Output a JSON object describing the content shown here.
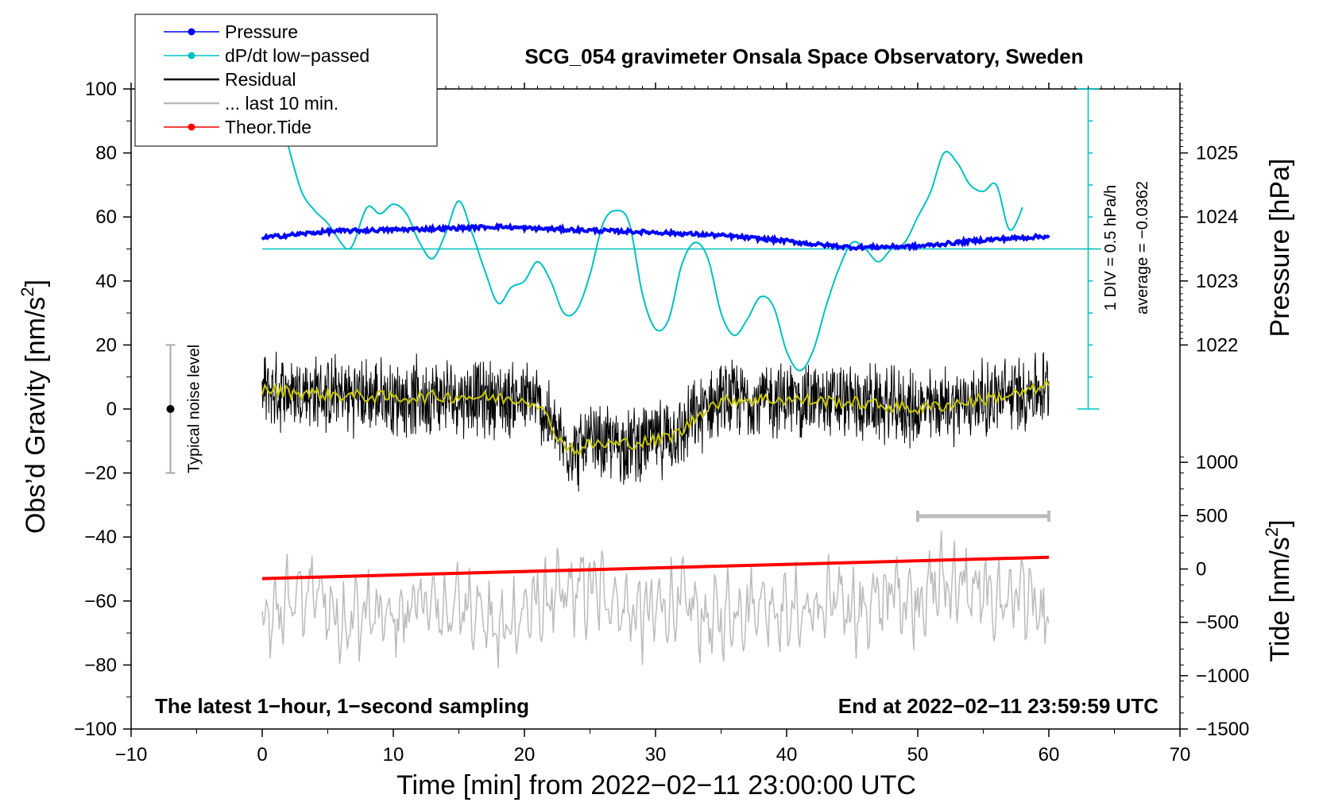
{
  "chart_data": {
    "type": "line",
    "title": "SCG_054 gravimeter Onsala Space Observatory, Sweden",
    "xlabel": "Time [min] from 2022−02−11 23:00:00 UTC",
    "xlim": [
      -10,
      70
    ],
    "xticks": [
      -10,
      0,
      10,
      20,
      30,
      40,
      50,
      60,
      70
    ],
    "xtick_labels": [
      "−10",
      "0",
      "10",
      "20",
      "30",
      "40",
      "50",
      "60",
      "70"
    ],
    "left_axis": {
      "label": "Obs’d Gravity [nm/s",
      "label_sup": "2",
      "label_end": "]",
      "ylim": [
        -100,
        100
      ],
      "ticks": [
        -100,
        -80,
        -60,
        -40,
        -20,
        0,
        20,
        40,
        60,
        80,
        100
      ],
      "tick_labels": [
        "−100",
        "−80",
        "−60",
        "−40",
        "−20",
        "0",
        "20",
        "40",
        "60",
        "80",
        "100"
      ]
    },
    "pressure_axis": {
      "label": "Pressure [hPa]",
      "ticks": [
        1022,
        1023,
        1024,
        1025
      ],
      "tick_labels": [
        "1022",
        "1023",
        "1024",
        "1025"
      ],
      "gravity_equivalent": [
        20,
        40,
        60,
        80
      ]
    },
    "tide_axis": {
      "label": "Tide [nm/s",
      "label_sup": "2",
      "label_end": "]",
      "ticks": [
        -1500,
        -1000,
        -500,
        0,
        500,
        1000
      ],
      "tick_labels": [
        "−1500",
        "−1000",
        "−500",
        "0",
        "500",
        "1000"
      ],
      "gravity_equivalent": [
        -100,
        -83.33,
        -66.67,
        -50,
        -33.33,
        -16.67
      ]
    },
    "dpdt_scale": {
      "label1": "1 DIV = 0.5 hPa/h",
      "label2": "average = −0.0362",
      "x": 63,
      "y_range": [
        0,
        100
      ],
      "ticks": [
        0,
        10,
        20,
        30,
        40,
        50,
        60,
        70,
        80,
        90,
        100
      ],
      "baseline": 50
    },
    "noise_bar": {
      "label": "Typical noise level",
      "x": -7,
      "center": 0,
      "range": [
        -20,
        20
      ]
    },
    "last10_bar": {
      "x_range": [
        50,
        60
      ],
      "y": -33.5
    },
    "series": [
      {
        "name": "Pressure",
        "color": "#0000ff",
        "marker": "dot",
        "x": [
          0,
          5,
          10,
          15,
          18,
          20,
          25,
          30,
          35,
          40,
          42,
          45,
          50,
          55,
          60
        ],
        "values": [
          53.5,
          55.5,
          56,
          56.5,
          57,
          56.5,
          55.8,
          55.2,
          54.2,
          52.5,
          51.5,
          50.5,
          50.8,
          52.8,
          54
        ]
      },
      {
        "name": "dP/dt low−passed",
        "color": "#00c0c0",
        "marker": "dot",
        "x": [
          2,
          3,
          4,
          5,
          6,
          6.5,
          7,
          8,
          9,
          10,
          11,
          12,
          13,
          14,
          15,
          16,
          17,
          18,
          19,
          20,
          21,
          22,
          23,
          24,
          25,
          26,
          27,
          28,
          29,
          30,
          31,
          32,
          33,
          34,
          35,
          36,
          37,
          38,
          39,
          40,
          41,
          42,
          43,
          44,
          45,
          46,
          47,
          48,
          49,
          50,
          51,
          52,
          53,
          54,
          55,
          56,
          57,
          58
        ],
        "values": [
          82,
          68,
          62,
          58,
          52,
          50,
          52,
          63,
          61,
          64,
          61,
          52,
          47,
          55,
          65,
          55,
          43,
          33,
          38,
          40,
          46,
          40,
          30,
          31,
          42,
          58,
          62,
          58,
          36,
          25,
          28,
          45,
          52,
          47,
          30,
          23,
          28,
          35,
          32,
          18,
          12,
          18,
          32,
          44,
          52,
          50,
          46,
          50,
          52,
          60,
          68,
          80,
          77,
          70,
          68,
          70,
          56,
          63
        ]
      },
      {
        "name": "Residual",
        "color": "#000000",
        "x": [
          0,
          5,
          10,
          15,
          20,
          21,
          22,
          23,
          24,
          25,
          27,
          30,
          32,
          34,
          36,
          40,
          45,
          50,
          55,
          58,
          60
        ],
        "values": [
          6,
          4.5,
          3.5,
          4,
          3,
          2,
          -5,
          -11,
          -13,
          -11,
          -11,
          -10,
          -7,
          1,
          3,
          3,
          2,
          0,
          3,
          5,
          7
        ],
        "amplitude": 10
      },
      {
        "name": "... last 10 min.",
        "color": "#bbbbbb",
        "x": [
          0,
          2,
          4,
          6,
          8,
          10,
          12,
          14,
          16,
          18,
          20,
          22,
          24,
          26,
          28,
          30,
          32,
          34,
          36,
          38,
          40,
          42,
          44,
          46,
          48,
          50,
          52,
          54,
          56,
          58,
          60
        ],
        "values": [
          -600,
          -300,
          -200,
          -500,
          -400,
          -500,
          -300,
          -400,
          -300,
          -600,
          -400,
          -300,
          -200,
          -200,
          -400,
          -400,
          -300,
          -500,
          -400,
          -300,
          -400,
          -400,
          -300,
          -400,
          -200,
          -300,
          -100,
          -200,
          -300,
          -200,
          -600
        ]
      },
      {
        "name": "Theor.Tide",
        "color": "#ff0000",
        "marker": "dot",
        "x": [
          0,
          60
        ],
        "values": [
          -90,
          110
        ]
      }
    ],
    "annotations": [
      "The latest 1−hour, 1−second sampling",
      "End at 2022−02−11 23:59:59 UTC"
    ]
  }
}
